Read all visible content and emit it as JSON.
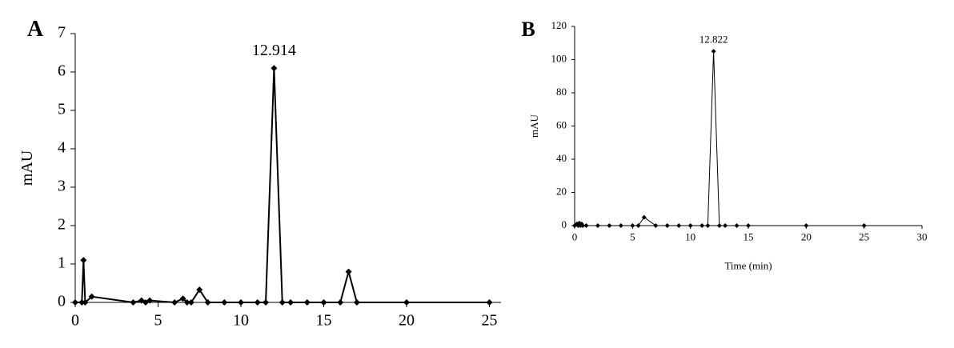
{
  "chart_data": [
    {
      "type": "line",
      "panel_label": "A",
      "y_label": "mAU",
      "annotation": "12.914",
      "color": "#000000",
      "marker": "diamond",
      "x": [
        0,
        0.4,
        0.5,
        0.6,
        1.0,
        3.5,
        4.0,
        4.25,
        4.5,
        6.0,
        6.5,
        6.75,
        7.0,
        7.5,
        8.0,
        9.0,
        10.0,
        11.0,
        11.5,
        12.0,
        12.5,
        13.0,
        14.0,
        15.0,
        16.0,
        16.5,
        17.0,
        20.0,
        25.0
      ],
      "values": [
        0,
        0,
        1.1,
        0,
        0.15,
        0,
        0.05,
        0,
        0.05,
        0,
        0.1,
        0,
        0,
        0.33,
        0,
        0,
        0,
        0,
        0,
        6.1,
        0,
        0,
        0,
        0,
        0,
        0.8,
        0,
        0,
        0
      ],
      "xlim": [
        0,
        25.7
      ],
      "xticks": [
        0,
        5,
        10,
        15,
        20,
        25
      ],
      "ylim": [
        0,
        7
      ],
      "yticks": [
        0,
        1,
        2,
        3,
        4,
        5,
        6,
        7
      ]
    },
    {
      "type": "line",
      "panel_label": "B",
      "x_label": "Time (min)",
      "y_label": "mAU",
      "annotation": "12.822",
      "color": "#000000",
      "marker": "diamond",
      "x": [
        0,
        0.2,
        0.3,
        0.4,
        0.5,
        0.6,
        0.7,
        1,
        2,
        3,
        4,
        5,
        5.5,
        6,
        7,
        8,
        9,
        10,
        11,
        11.5,
        12,
        12.5,
        13,
        14,
        15,
        20,
        25
      ],
      "values": [
        0,
        1,
        0,
        1.5,
        0,
        1,
        0,
        0,
        0,
        0,
        0,
        0,
        0,
        5,
        0,
        0,
        0,
        0,
        0,
        0,
        105,
        0,
        0,
        0,
        0,
        0,
        0
      ],
      "xlim": [
        0,
        30
      ],
      "xticks": [
        0,
        5,
        10,
        15,
        20,
        25,
        30
      ],
      "ylim": [
        0,
        120
      ],
      "yticks": [
        0,
        20,
        40,
        60,
        80,
        100,
        120
      ]
    }
  ]
}
